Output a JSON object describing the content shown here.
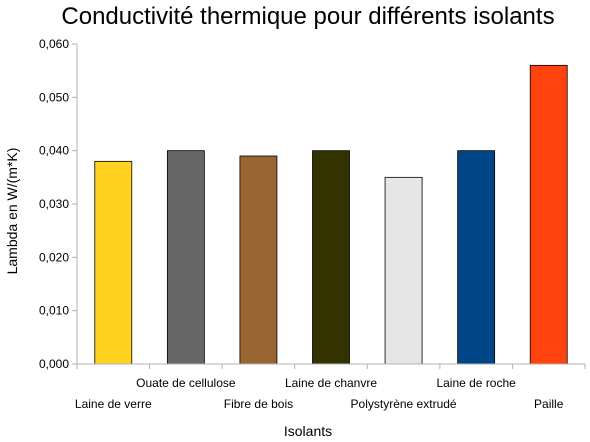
{
  "chart_data": {
    "type": "bar",
    "title": "Conductivité thermique pour différents isolants",
    "xlabel": "Isolants",
    "ylabel": "Lambda en W/(m*K)",
    "ylim": [
      0,
      0.06
    ],
    "yticks": [
      "0,000",
      "0,010",
      "0,020",
      "0,030",
      "0,040",
      "0,050",
      "0,060"
    ],
    "grid": false,
    "legend": "none",
    "categories": [
      "Laine de verre",
      "Ouate de cellulose",
      "Fibre de bois",
      "Laine de chanvre",
      "Polystyrène extrudé",
      "Laine de roche",
      "Paille"
    ],
    "values": [
      0.038,
      0.04,
      0.039,
      0.04,
      0.035,
      0.04,
      0.056
    ],
    "colors": [
      "#ffd320",
      "#666666",
      "#996633",
      "#333300",
      "#e6e6e6",
      "#004586",
      "#ff420e"
    ]
  }
}
